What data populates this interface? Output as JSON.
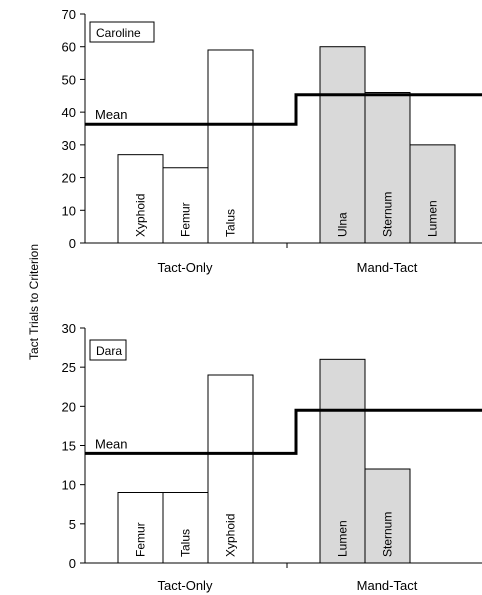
{
  "shared": {
    "ylabel": "Tact Trials to Criterion",
    "mean_label": "Mean",
    "bar_color_tact_only": "#ffffff",
    "bar_color_mand_tact": "#d9d9d9",
    "line_color": "#000000"
  },
  "chart_data": [
    {
      "type": "bar",
      "title": "Caroline",
      "ylim": [
        0,
        70
      ],
      "yticks": [
        0,
        10,
        20,
        30,
        40,
        50,
        60,
        70
      ],
      "groups": [
        {
          "name": "Tact-Only",
          "bars": [
            {
              "label": "Xyphoid",
              "value": 27
            },
            {
              "label": "Femur",
              "value": 23
            },
            {
              "label": "Talus",
              "value": 59
            }
          ],
          "mean": 36.3
        },
        {
          "name": "Mand-Tact",
          "bars": [
            {
              "label": "Ulna",
              "value": 60
            },
            {
              "label": "Sternum",
              "value": 46
            },
            {
              "label": "Lumen",
              "value": 30
            }
          ],
          "mean": 45.3
        }
      ]
    },
    {
      "type": "bar",
      "title": "Dara",
      "ylim": [
        0,
        30
      ],
      "yticks": [
        0,
        5,
        10,
        15,
        20,
        25,
        30
      ],
      "groups": [
        {
          "name": "Tact-Only",
          "bars": [
            {
              "label": "Femur",
              "value": 9
            },
            {
              "label": "Talus",
              "value": 9
            },
            {
              "label": "Xyphoid",
              "value": 24
            }
          ],
          "mean": 14
        },
        {
          "name": "Mand-Tact",
          "bars": [
            {
              "label": "Lumen",
              "value": 26
            },
            {
              "label": "Sternum",
              "value": 12
            }
          ],
          "mean": 19.5
        }
      ]
    }
  ]
}
